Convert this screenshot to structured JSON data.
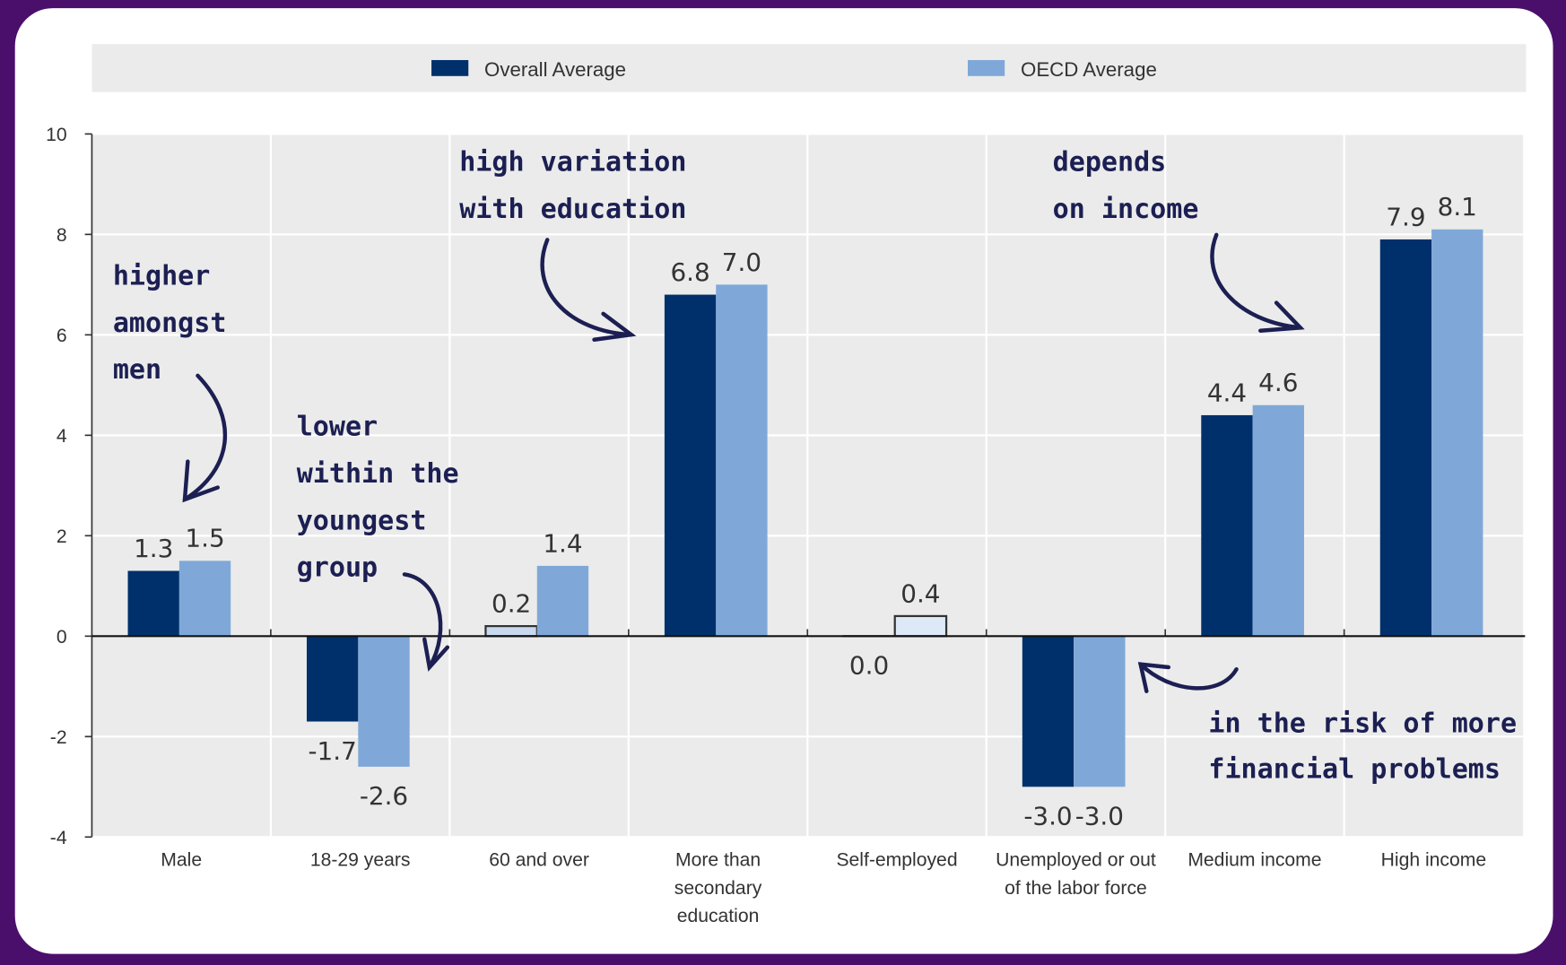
{
  "colors": {
    "overall": "#00306b",
    "oecd": "#7fa8d9",
    "highlight_fill": "#c7d8ef",
    "highlight_fill_light": "#dde9f7",
    "frame": "#4a0f6b",
    "annotation": "#1c1f52"
  },
  "chart_data": {
    "type": "bar",
    "categories": [
      "Male",
      "18-29 years",
      "60 and over",
      "More than secondary education",
      "Self-employed",
      "Unemployed or out of the labor force",
      "Medium income",
      "High income"
    ],
    "category_lines": [
      [
        "Male"
      ],
      [
        "18-29 years"
      ],
      [
        "60 and over"
      ],
      [
        "More than",
        "secondary",
        "education"
      ],
      [
        "Self-employed"
      ],
      [
        "Unemployed or out",
        "of the labor force"
      ],
      [
        "Medium income"
      ],
      [
        "High income"
      ]
    ],
    "series": [
      {
        "name": "Overall Average",
        "values": [
          1.3,
          -1.7,
          0.2,
          6.8,
          0.0,
          -3.0,
          4.4,
          7.9
        ],
        "labels": [
          "1.3",
          "-1.7",
          "0.2",
          "6.8",
          "0.0",
          "-3.0",
          "4.4",
          "7.9"
        ]
      },
      {
        "name": "OECD Average",
        "values": [
          1.5,
          -2.6,
          1.4,
          7.0,
          0.4,
          -3.0,
          4.6,
          8.1
        ],
        "labels": [
          "1.5",
          "-2.6",
          "1.4",
          "7.0",
          "0.4",
          "-3.0",
          "4.6",
          "8.1"
        ]
      }
    ],
    "highlighted": [
      {
        "series": 0,
        "category": 2
      },
      {
        "series": 0,
        "category": 4
      },
      {
        "series": 1,
        "category": 4
      }
    ],
    "ylim": [
      -4,
      10
    ],
    "yticks": [
      -4,
      -2,
      0,
      2,
      4,
      6,
      8,
      10
    ],
    "grid": true,
    "legend_position": "top",
    "title": "",
    "xlabel": "",
    "ylabel": ""
  },
  "annotations": [
    {
      "lines": [
        "higher",
        "amongst",
        "men"
      ]
    },
    {
      "lines": [
        "lower",
        "within the",
        "youngest",
        "group"
      ]
    },
    {
      "lines": [
        "high variation",
        "with education"
      ]
    },
    {
      "lines": [
        "depends",
        "on income"
      ]
    },
    {
      "lines": [
        "in the risk of more",
        "financial problems"
      ]
    }
  ]
}
